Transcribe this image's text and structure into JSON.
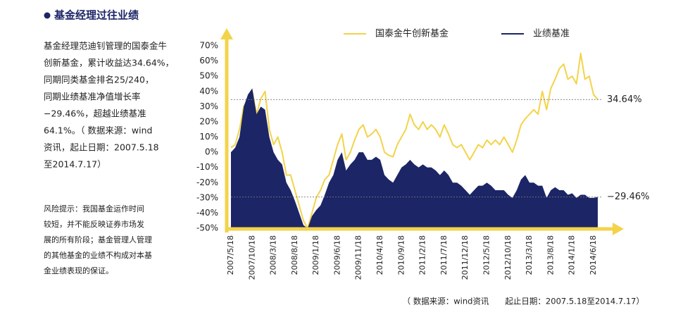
{
  "panel": {
    "title": "基金经理过往业绩",
    "summary": [
      "基金经理范迪钊管理的国泰金牛",
      "创新基金，累计收益达34.64%，",
      "同期同类基金排名25/240，",
      "同期业绩基准净值增长率",
      "−29.46%，超越业绩基准",
      "64.1%。（ 数据来源：wind",
      "资讯，起止日期：2007.5.18",
      "至2014.7.17）"
    ],
    "risk": [
      "风险提示：我国基金运作时间",
      "较短，并不能反映证券市场发",
      "展的所有阶段；基金管理人管理",
      "的其他基金的业绩不构成对本基",
      "金业绩表现的保证。"
    ]
  },
  "chart_data": {
    "type": "line",
    "categories": [
      "2007/5/18",
      null,
      null,
      null,
      null,
      "2007/10/18",
      null,
      null,
      null,
      null,
      "2008/3/18",
      null,
      null,
      null,
      null,
      "2008/8/18",
      null,
      null,
      null,
      null,
      "2009/1/18",
      null,
      null,
      null,
      null,
      "2009/6/18",
      null,
      null,
      null,
      null,
      "2009/11/18",
      null,
      null,
      null,
      null,
      "2010/4/18",
      null,
      null,
      null,
      null,
      "2010/9/18",
      null,
      null,
      null,
      null,
      "2011/2/18",
      null,
      null,
      null,
      null,
      "2011/7/18",
      null,
      null,
      null,
      null,
      "2011/12/18",
      null,
      null,
      null,
      null,
      "2012/5/18",
      null,
      null,
      null,
      null,
      "2012/10/18",
      null,
      null,
      null,
      null,
      "2013/3/18",
      null,
      null,
      null,
      null,
      "2013/8/18",
      null,
      null,
      null,
      null,
      "2014/1/18",
      null,
      null,
      null,
      null,
      "2014/6/18",
      null
    ],
    "series": [
      {
        "name": "国泰金牛创新基金",
        "color": "#f3d34a",
        "style": "line",
        "values": [
          3,
          5,
          15,
          30,
          35,
          40,
          25,
          35,
          40,
          15,
          5,
          10,
          0,
          -15,
          -15,
          -25,
          -35,
          -45,
          -50,
          -40,
          -30,
          -25,
          -18,
          -15,
          -5,
          5,
          12,
          -5,
          0,
          8,
          15,
          18,
          10,
          12,
          15,
          10,
          0,
          -2,
          -3,
          5,
          10,
          15,
          25,
          18,
          15,
          20,
          15,
          18,
          15,
          10,
          18,
          12,
          5,
          3,
          5,
          0,
          -5,
          0,
          5,
          3,
          8,
          5,
          8,
          5,
          10,
          5,
          0,
          8,
          18,
          22,
          25,
          28,
          25,
          40,
          28,
          42,
          48,
          55,
          58,
          48,
          50,
          45,
          65,
          48,
          50,
          38,
          34.64
        ]
      },
      {
        "name": "业绩基准",
        "color": "#1c2566",
        "style": "area",
        "values": [
          0,
          3,
          10,
          30,
          38,
          42,
          25,
          30,
          28,
          10,
          0,
          -5,
          -8,
          -20,
          -25,
          -32,
          -40,
          -48,
          -50,
          -42,
          -38,
          -35,
          -28,
          -20,
          -15,
          -5,
          0,
          -12,
          -8,
          -5,
          0,
          0,
          -5,
          -5,
          -3,
          -5,
          -15,
          -18,
          -20,
          -15,
          -10,
          -8,
          -5,
          -8,
          -10,
          -8,
          -10,
          -10,
          -12,
          -15,
          -12,
          -15,
          -20,
          -20,
          -22,
          -25,
          -28,
          -25,
          -22,
          -22,
          -20,
          -22,
          -25,
          -25,
          -25,
          -28,
          -30,
          -25,
          -18,
          -15,
          -20,
          -20,
          -22,
          -22,
          -30,
          -25,
          -23,
          -25,
          -25,
          -28,
          -27,
          -30,
          -28,
          -28,
          -30,
          -30,
          -29.46
        ]
      }
    ],
    "ylim": [
      -50,
      70
    ],
    "yticks": [
      {
        "value": -50,
        "label": "-50%"
      },
      {
        "value": -40,
        "label": "-40%"
      },
      {
        "value": -30,
        "label": "-30%"
      },
      {
        "value": -20,
        "label": "-20%"
      },
      {
        "value": -10,
        "label": "-10%"
      },
      {
        "value": 0,
        "label": "0%"
      },
      {
        "value": 10,
        "label": "10%"
      },
      {
        "value": 20,
        "label": "20%"
      },
      {
        "value": 30,
        "label": "30%"
      },
      {
        "value": 40,
        "label": "40%"
      },
      {
        "value": 50,
        "label": "50%"
      },
      {
        "value": 60,
        "label": "60%"
      },
      {
        "value": 70,
        "label": "70%"
      }
    ],
    "grid": false,
    "legend": "top",
    "reference_lines": [
      {
        "value": 34.64,
        "label": "34.64%"
      },
      {
        "value": -29.46,
        "label": "−29.46%"
      }
    ]
  },
  "footnote": "（ 数据来源：wind资讯　　起止日期：2007.5.18至2014.7.17）"
}
